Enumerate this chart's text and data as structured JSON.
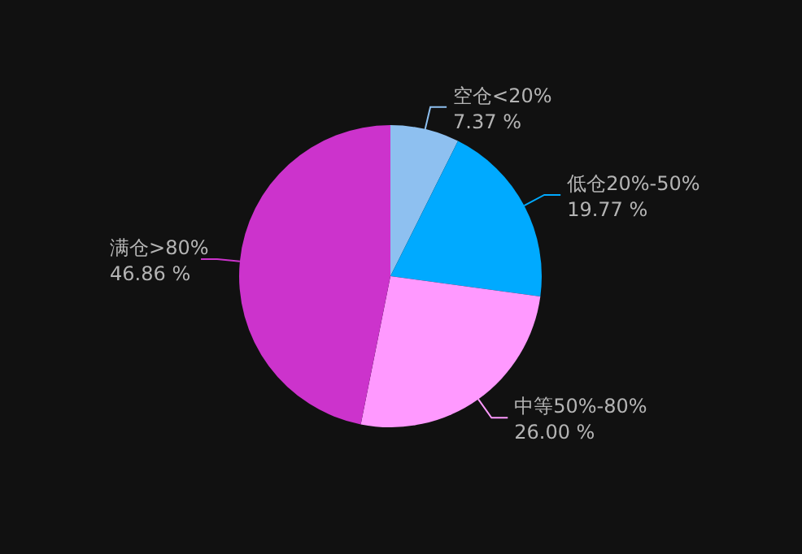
{
  "chart_data": {
    "type": "pie",
    "categories": [
      "空仓<20%",
      "低仓20%-50%",
      "中等50%-80%",
      "满仓>80%"
    ],
    "values": [
      7.37,
      19.77,
      26.0,
      46.86
    ],
    "value_labels": [
      "7.37 %",
      "19.77 %",
      "26.00 %",
      "46.86 %"
    ],
    "colors": [
      "#8ec0f0",
      "#00aaff",
      "#ff99ff",
      "#cc33cc"
    ]
  }
}
